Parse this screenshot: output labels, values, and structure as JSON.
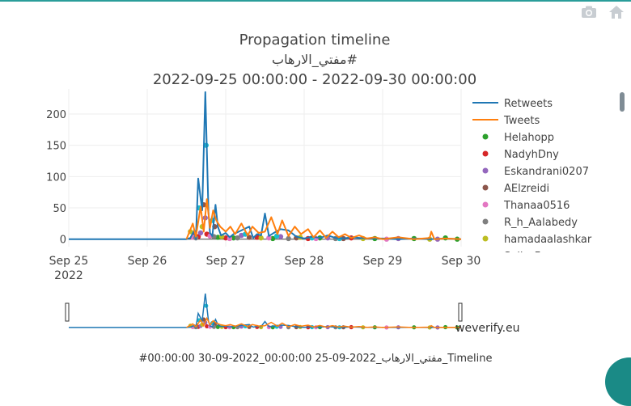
{
  "toolbar": {
    "icons": [
      "camera-icon",
      "home-icon"
    ]
  },
  "watermark": "weverify.eu",
  "caption": "#00:00:00 30-09-2022_00:00:00 25-09-2022_مفتي_الارهاب_Timeline",
  "chart_data": {
    "type": "line",
    "title": "Propagation timeline",
    "subtitle": "مفتي_الارهاب#",
    "date_range": "2022-09-25 00:00:00 - 2022-09-30 00:00:00",
    "xlabel": "",
    "ylabel": "",
    "x_ticks": [
      "Sep 25\n2022",
      "Sep 26",
      "Sep 27",
      "Sep 28",
      "Sep 29",
      "Sep 30"
    ],
    "xlim": [
      0,
      5
    ],
    "ylim": [
      -12,
      240
    ],
    "y_ticks": [
      0,
      50,
      100,
      150,
      200
    ],
    "grid": true,
    "legend_position": "right",
    "series": [
      {
        "name": "Retweets",
        "color": "#1f77b4",
        "kind": "line",
        "points": [
          [
            0.0,
            0
          ],
          [
            1.5,
            0
          ],
          [
            1.55,
            2
          ],
          [
            1.6,
            14
          ],
          [
            1.62,
            0
          ],
          [
            1.65,
            97
          ],
          [
            1.7,
            46
          ],
          [
            1.74,
            235
          ],
          [
            1.78,
            44
          ],
          [
            1.8,
            10
          ],
          [
            1.83,
            5
          ],
          [
            1.87,
            55
          ],
          [
            1.9,
            20
          ],
          [
            1.94,
            6
          ],
          [
            2.0,
            10
          ],
          [
            2.05,
            3
          ],
          [
            2.1,
            8
          ],
          [
            2.2,
            14
          ],
          [
            2.3,
            20
          ],
          [
            2.35,
            2
          ],
          [
            2.4,
            8
          ],
          [
            2.45,
            6
          ],
          [
            2.5,
            41
          ],
          [
            2.55,
            5
          ],
          [
            2.6,
            9
          ],
          [
            2.7,
            16
          ],
          [
            2.8,
            14
          ],
          [
            2.9,
            4
          ],
          [
            3.0,
            1
          ],
          [
            3.1,
            4
          ],
          [
            3.2,
            2
          ],
          [
            3.3,
            6
          ],
          [
            3.4,
            2
          ],
          [
            3.5,
            1
          ],
          [
            3.6,
            3
          ],
          [
            3.8,
            1
          ],
          [
            4.0,
            1
          ],
          [
            4.2,
            0
          ],
          [
            4.4,
            1
          ],
          [
            4.6,
            0
          ],
          [
            4.8,
            1
          ],
          [
            5.0,
            0
          ]
        ]
      },
      {
        "name": "Tweets",
        "color": "#ff7f0e",
        "kind": "line",
        "points": [
          [
            1.5,
            0
          ],
          [
            1.58,
            25
          ],
          [
            1.62,
            4
          ],
          [
            1.68,
            52
          ],
          [
            1.72,
            12
          ],
          [
            1.76,
            64
          ],
          [
            1.8,
            18
          ],
          [
            1.84,
            46
          ],
          [
            1.88,
            30
          ],
          [
            1.93,
            20
          ],
          [
            2.0,
            12
          ],
          [
            2.06,
            20
          ],
          [
            2.12,
            8
          ],
          [
            2.2,
            25
          ],
          [
            2.28,
            6
          ],
          [
            2.34,
            20
          ],
          [
            2.42,
            10
          ],
          [
            2.5,
            12
          ],
          [
            2.58,
            35
          ],
          [
            2.66,
            8
          ],
          [
            2.72,
            30
          ],
          [
            2.8,
            5
          ],
          [
            2.88,
            20
          ],
          [
            2.96,
            8
          ],
          [
            3.05,
            16
          ],
          [
            3.12,
            3
          ],
          [
            3.2,
            14
          ],
          [
            3.28,
            2
          ],
          [
            3.36,
            12
          ],
          [
            3.44,
            3
          ],
          [
            3.52,
            8
          ],
          [
            3.6,
            2
          ],
          [
            3.7,
            6
          ],
          [
            3.8,
            1
          ],
          [
            3.9,
            3
          ],
          [
            4.0,
            0
          ],
          [
            4.2,
            3
          ],
          [
            4.4,
            0
          ],
          [
            4.6,
            2
          ],
          [
            4.62,
            12
          ],
          [
            4.66,
            0
          ],
          [
            4.8,
            1
          ],
          [
            5.0,
            0
          ]
        ]
      },
      {
        "name": "Helahopp",
        "color": "#2ca02c",
        "kind": "markers",
        "points": [
          [
            1.9,
            3
          ],
          [
            2.1,
            2
          ],
          [
            2.6,
            1
          ],
          [
            3.2,
            2
          ],
          [
            3.9,
            1
          ],
          [
            4.4,
            1
          ],
          [
            4.8,
            2
          ],
          [
            4.95,
            0
          ]
        ]
      },
      {
        "name": "NadyhDny",
        "color": "#d62728",
        "kind": "markers",
        "points": [
          [
            1.65,
            4
          ],
          [
            1.76,
            8
          ],
          [
            2.0,
            2
          ],
          [
            2.4,
            3
          ],
          [
            3.05,
            1
          ],
          [
            3.6,
            2
          ]
        ]
      },
      {
        "name": "Eskandrani0207",
        "color": "#9467bd",
        "kind": "markers",
        "points": [
          [
            1.68,
            10
          ],
          [
            1.74,
            34
          ],
          [
            2.2,
            6
          ],
          [
            2.7,
            4
          ],
          [
            3.3,
            2
          ],
          [
            4.2,
            1
          ],
          [
            4.7,
            0
          ]
        ]
      },
      {
        "name": "AElzreidi",
        "color": "#8c564b",
        "kind": "markers",
        "points": [
          [
            1.6,
            6
          ],
          [
            1.72,
            55
          ],
          [
            1.86,
            20
          ],
          [
            2.3,
            3
          ],
          [
            2.9,
            2
          ],
          [
            3.5,
            1
          ]
        ]
      },
      {
        "name": "Thanaa0516",
        "color": "#e377c2",
        "kind": "markers",
        "points": [
          [
            1.58,
            3
          ],
          [
            1.8,
            5
          ],
          [
            2.05,
            1
          ],
          [
            2.55,
            2
          ],
          [
            3.15,
            1
          ],
          [
            4.05,
            0
          ]
        ]
      },
      {
        "name": "R_h_Aalabedy",
        "color": "#7f7f7f",
        "kind": "markers",
        "points": [
          [
            1.62,
            2
          ],
          [
            1.85,
            4
          ],
          [
            2.15,
            2
          ],
          [
            2.8,
            1
          ],
          [
            3.4,
            1
          ]
        ]
      },
      {
        "name": "hamadaalashkar",
        "color": "#bcbd22",
        "kind": "markers",
        "points": [
          [
            1.55,
            12
          ],
          [
            1.7,
            20
          ],
          [
            1.95,
            4
          ],
          [
            2.45,
            2
          ],
          [
            2.95,
            3
          ],
          [
            3.75,
            1
          ],
          [
            4.6,
            0
          ]
        ]
      },
      {
        "name": "Sally_Fo...",
        "color": "#17becf",
        "kind": "markers",
        "points": [
          [
            1.66,
            50
          ],
          [
            1.75,
            150
          ],
          [
            1.83,
            30
          ],
          [
            2.25,
            8
          ],
          [
            2.65,
            5
          ],
          [
            3.1,
            2
          ],
          [
            3.45,
            1
          ]
        ]
      }
    ]
  }
}
